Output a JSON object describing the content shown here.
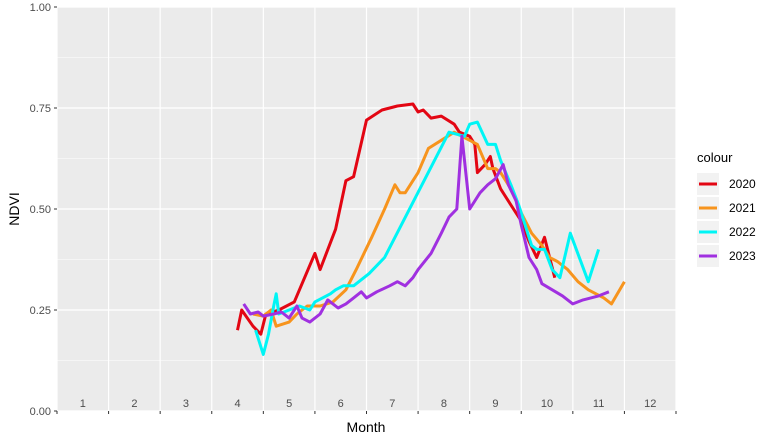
{
  "chart_data": {
    "type": "line",
    "title": "",
    "xlabel": "Month",
    "ylabel": "NDVI",
    "x_tick_labels": [
      "1",
      "2",
      "3",
      "4",
      "5",
      "6",
      "7",
      "8",
      "9",
      "10",
      "11",
      "12"
    ],
    "y_tick_labels": [
      "0.00",
      "0.25",
      "0.50",
      "0.75",
      "1.00"
    ],
    "ylim": [
      0,
      1
    ],
    "xlim": [
      0,
      12
    ],
    "grid": true,
    "legend": {
      "title": "colour",
      "position": "right"
    },
    "series": [
      {
        "name": "2020",
        "color": "#e30613",
        "points": [
          [
            3.5,
            0.2
          ],
          [
            3.58,
            0.25
          ],
          [
            3.8,
            0.21
          ],
          [
            3.95,
            0.19
          ],
          [
            4.05,
            0.24
          ],
          [
            4.3,
            0.25
          ],
          [
            4.6,
            0.27
          ],
          [
            5.0,
            0.39
          ],
          [
            5.1,
            0.35
          ],
          [
            5.4,
            0.45
          ],
          [
            5.6,
            0.57
          ],
          [
            5.75,
            0.58
          ],
          [
            6.0,
            0.72
          ],
          [
            6.3,
            0.745
          ],
          [
            6.6,
            0.755
          ],
          [
            6.9,
            0.76
          ],
          [
            7.0,
            0.74
          ],
          [
            7.1,
            0.745
          ],
          [
            7.25,
            0.725
          ],
          [
            7.45,
            0.73
          ],
          [
            7.7,
            0.71
          ],
          [
            7.8,
            0.69
          ],
          [
            8.0,
            0.68
          ],
          [
            8.1,
            0.66
          ],
          [
            8.15,
            0.59
          ],
          [
            8.3,
            0.61
          ],
          [
            8.4,
            0.63
          ],
          [
            8.45,
            0.6
          ],
          [
            8.6,
            0.55
          ],
          [
            8.8,
            0.51
          ],
          [
            9.0,
            0.47
          ],
          [
            9.15,
            0.42
          ],
          [
            9.3,
            0.38
          ],
          [
            9.45,
            0.43
          ],
          [
            9.55,
            0.38
          ],
          [
            9.65,
            0.33
          ]
        ]
      },
      {
        "name": "2021",
        "color": "#f7941d",
        "points": [
          [
            3.8,
            0.24
          ],
          [
            4.0,
            0.235
          ],
          [
            4.15,
            0.25
          ],
          [
            4.25,
            0.21
          ],
          [
            4.5,
            0.22
          ],
          [
            4.65,
            0.24
          ],
          [
            4.85,
            0.26
          ],
          [
            5.1,
            0.26
          ],
          [
            5.35,
            0.27
          ],
          [
            5.6,
            0.3
          ],
          [
            5.8,
            0.35
          ],
          [
            6.1,
            0.43
          ],
          [
            6.35,
            0.5
          ],
          [
            6.55,
            0.56
          ],
          [
            6.65,
            0.54
          ],
          [
            6.75,
            0.54
          ],
          [
            7.0,
            0.59
          ],
          [
            7.2,
            0.65
          ],
          [
            7.45,
            0.67
          ],
          [
            7.7,
            0.69
          ],
          [
            7.85,
            0.68
          ],
          [
            8.0,
            0.67
          ],
          [
            8.15,
            0.66
          ],
          [
            8.35,
            0.6
          ],
          [
            8.5,
            0.6
          ],
          [
            8.6,
            0.59
          ],
          [
            8.8,
            0.55
          ],
          [
            9.0,
            0.49
          ],
          [
            9.2,
            0.44
          ],
          [
            9.4,
            0.41
          ],
          [
            9.55,
            0.38
          ],
          [
            9.7,
            0.37
          ],
          [
            9.9,
            0.35
          ],
          [
            10.1,
            0.32
          ],
          [
            10.3,
            0.3
          ],
          [
            10.6,
            0.28
          ],
          [
            10.75,
            0.265
          ],
          [
            11.0,
            0.32
          ]
        ]
      },
      {
        "name": "2022",
        "color": "#00f5f5",
        "points": [
          [
            3.85,
            0.2
          ],
          [
            4.0,
            0.14
          ],
          [
            4.1,
            0.19
          ],
          [
            4.2,
            0.26
          ],
          [
            4.25,
            0.29
          ],
          [
            4.3,
            0.24
          ],
          [
            4.5,
            0.25
          ],
          [
            4.7,
            0.26
          ],
          [
            4.9,
            0.25
          ],
          [
            5.0,
            0.27
          ],
          [
            5.3,
            0.29
          ],
          [
            5.4,
            0.3
          ],
          [
            5.55,
            0.31
          ],
          [
            5.75,
            0.31
          ],
          [
            6.05,
            0.34
          ],
          [
            6.35,
            0.38
          ],
          [
            7.6,
            0.69
          ],
          [
            7.9,
            0.68
          ],
          [
            8.0,
            0.71
          ],
          [
            8.15,
            0.715
          ],
          [
            8.35,
            0.66
          ],
          [
            8.5,
            0.66
          ],
          [
            8.6,
            0.62
          ],
          [
            8.8,
            0.56
          ],
          [
            8.95,
            0.51
          ],
          [
            9.2,
            0.41
          ],
          [
            9.3,
            0.4
          ],
          [
            9.45,
            0.4
          ],
          [
            9.6,
            0.35
          ],
          [
            9.75,
            0.33
          ],
          [
            9.95,
            0.44
          ],
          [
            10.3,
            0.32
          ],
          [
            10.5,
            0.4
          ]
        ]
      },
      {
        "name": "2023",
        "color": "#a030e0",
        "points": [
          [
            3.62,
            0.265
          ],
          [
            3.75,
            0.24
          ],
          [
            3.9,
            0.245
          ],
          [
            4.0,
            0.235
          ],
          [
            4.2,
            0.24
          ],
          [
            4.35,
            0.245
          ],
          [
            4.5,
            0.23
          ],
          [
            4.65,
            0.26
          ],
          [
            4.75,
            0.23
          ],
          [
            4.9,
            0.22
          ],
          [
            5.1,
            0.24
          ],
          [
            5.25,
            0.275
          ],
          [
            5.45,
            0.255
          ],
          [
            5.6,
            0.265
          ],
          [
            5.75,
            0.28
          ],
          [
            5.9,
            0.295
          ],
          [
            6.0,
            0.28
          ],
          [
            6.2,
            0.295
          ],
          [
            6.45,
            0.31
          ],
          [
            6.6,
            0.32
          ],
          [
            6.75,
            0.31
          ],
          [
            6.9,
            0.33
          ],
          [
            7.0,
            0.35
          ],
          [
            7.25,
            0.39
          ],
          [
            7.45,
            0.44
          ],
          [
            7.6,
            0.48
          ],
          [
            7.75,
            0.5
          ],
          [
            7.85,
            0.68
          ],
          [
            8.0,
            0.5
          ],
          [
            8.2,
            0.54
          ],
          [
            8.35,
            0.56
          ],
          [
            8.5,
            0.575
          ],
          [
            8.65,
            0.61
          ],
          [
            8.75,
            0.56
          ],
          [
            8.9,
            0.52
          ],
          [
            9.0,
            0.46
          ],
          [
            9.15,
            0.38
          ],
          [
            9.3,
            0.35
          ],
          [
            9.4,
            0.315
          ],
          [
            9.6,
            0.3
          ],
          [
            9.8,
            0.285
          ],
          [
            10.0,
            0.265
          ],
          [
            10.2,
            0.275
          ],
          [
            10.5,
            0.285
          ],
          [
            10.7,
            0.295
          ]
        ]
      }
    ]
  }
}
